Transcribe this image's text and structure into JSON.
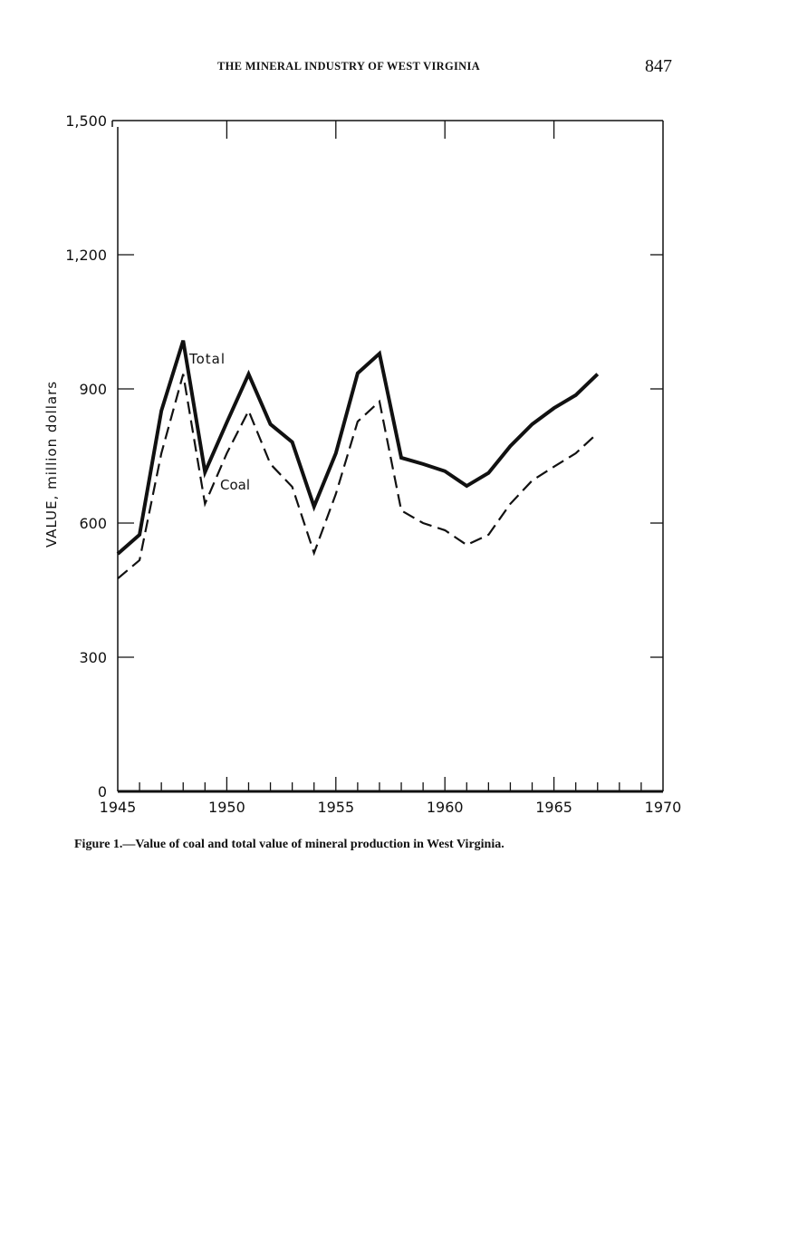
{
  "header": {
    "running_title": "THE MINERAL INDUSTRY OF WEST VIRGINIA",
    "page_number": "847"
  },
  "caption": "Figure 1.—Value of coal and total value of mineral production in West Virginia.",
  "chart_data": {
    "type": "line",
    "title": "",
    "xlabel": "",
    "ylabel": "VALUE, million dollars",
    "xlim": [
      1945,
      1970
    ],
    "ylim": [
      0,
      1500
    ],
    "x_ticks": [
      "1945",
      "1950",
      "1955",
      "1960",
      "1965",
      "1970"
    ],
    "y_ticks": [
      "0",
      "300",
      "600",
      "900",
      "1,200",
      "1,500"
    ],
    "x": [
      1945,
      1946,
      1947,
      1948,
      1949,
      1950,
      1951,
      1952,
      1953,
      1954,
      1955,
      1956,
      1957,
      1958,
      1959,
      1960,
      1961,
      1962,
      1963,
      1964,
      1965,
      1966,
      1967
    ],
    "series": [
      {
        "name": "Total",
        "style": "solid",
        "values": [
          531,
          574,
          851,
          1008,
          714,
          825,
          933,
          821,
          781,
          637,
          756,
          935,
          979,
          746,
          732,
          716,
          683,
          712,
          772,
          821,
          857,
          886,
          933
        ]
      },
      {
        "name": "Coal",
        "style": "dashed",
        "values": [
          476,
          517,
          756,
          933,
          643,
          756,
          851,
          732,
          681,
          533,
          665,
          827,
          872,
          628,
          600,
          584,
          551,
          574,
          643,
          695,
          726,
          756,
          801
        ]
      }
    ],
    "annotations": [
      "Total",
      "Coal"
    ],
    "grid": false
  }
}
